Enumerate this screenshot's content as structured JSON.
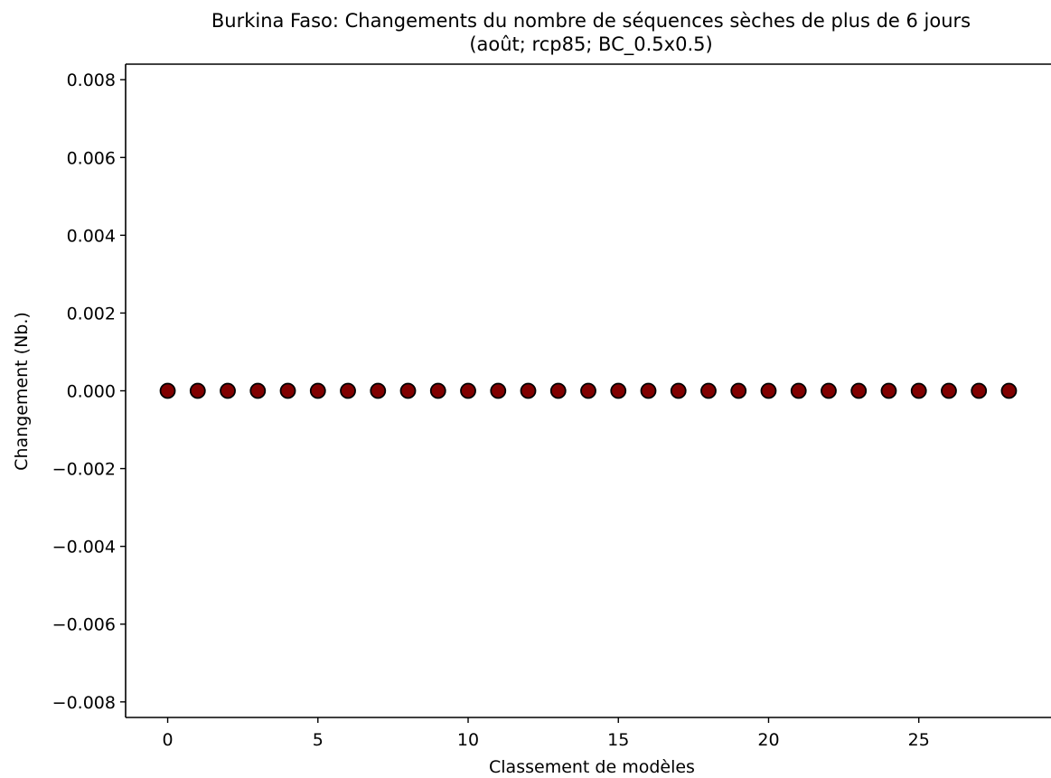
{
  "chart_data": {
    "type": "scatter",
    "title": "Burkina Faso: Changements du nombre de séquences sèches de plus de 6 jours",
    "subtitle": "(août; rcp85; BC_0.5x0.5)",
    "xlabel": "Classement de modèles",
    "ylabel": "Changement (Nb.)",
    "xlim": [
      -1.4,
      29.4
    ],
    "ylim": [
      -0.0084,
      0.0084
    ],
    "x_ticks": [
      0,
      5,
      10,
      15,
      20,
      25
    ],
    "x_tick_labels": [
      "0",
      "5",
      "10",
      "15",
      "20",
      "25"
    ],
    "y_ticks": [
      0.008,
      0.006,
      0.004,
      0.002,
      0.0,
      -0.002,
      -0.004,
      -0.006,
      -0.008
    ],
    "y_tick_labels": [
      "0.008",
      "0.006",
      "0.004",
      "0.002",
      "0.000",
      "−0.002",
      "−0.004",
      "−0.006",
      "−0.008"
    ],
    "grid": false,
    "marker_color": "#800000",
    "marker_edge_color": "#000000",
    "x": [
      0,
      1,
      2,
      3,
      4,
      5,
      6,
      7,
      8,
      9,
      10,
      11,
      12,
      13,
      14,
      15,
      16,
      17,
      18,
      19,
      20,
      21,
      22,
      23,
      24,
      25,
      26,
      27,
      28
    ],
    "y": [
      0,
      0,
      0,
      0,
      0,
      0,
      0,
      0,
      0,
      0,
      0,
      0,
      0,
      0,
      0,
      0,
      0,
      0,
      0,
      0,
      0,
      0,
      0,
      0,
      0,
      0,
      0,
      0,
      0
    ]
  }
}
